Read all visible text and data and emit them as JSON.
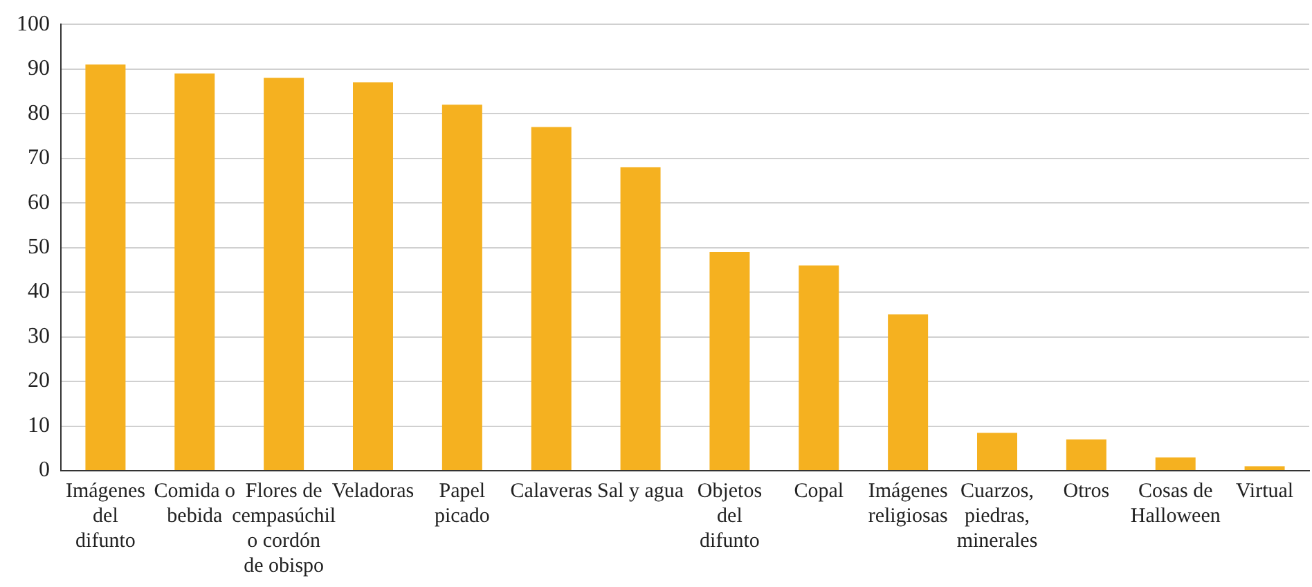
{
  "chart_data": {
    "type": "bar",
    "categories": [
      "Imágenes del difunto",
      "Comida o bebida",
      "Flores de cempasúchil o cordón de obispo",
      "Veladoras",
      "Papel picado",
      "Calaveras",
      "Sal y agua",
      "Objetos del difunto",
      "Copal",
      "Imágenes religiosas",
      "Cuarzos, piedras, minerales",
      "Otros",
      "Cosas de Halloween",
      "Virtual"
    ],
    "values": [
      91,
      89,
      88,
      87,
      82,
      77,
      68,
      49,
      46,
      35,
      8.5,
      7,
      3,
      1
    ],
    "color": "#f5b120",
    "ylim": [
      0,
      100
    ],
    "yticks": [
      0,
      10,
      20,
      30,
      40,
      50,
      60,
      70,
      80,
      90,
      100
    ],
    "grid": "y",
    "legend": false
  }
}
